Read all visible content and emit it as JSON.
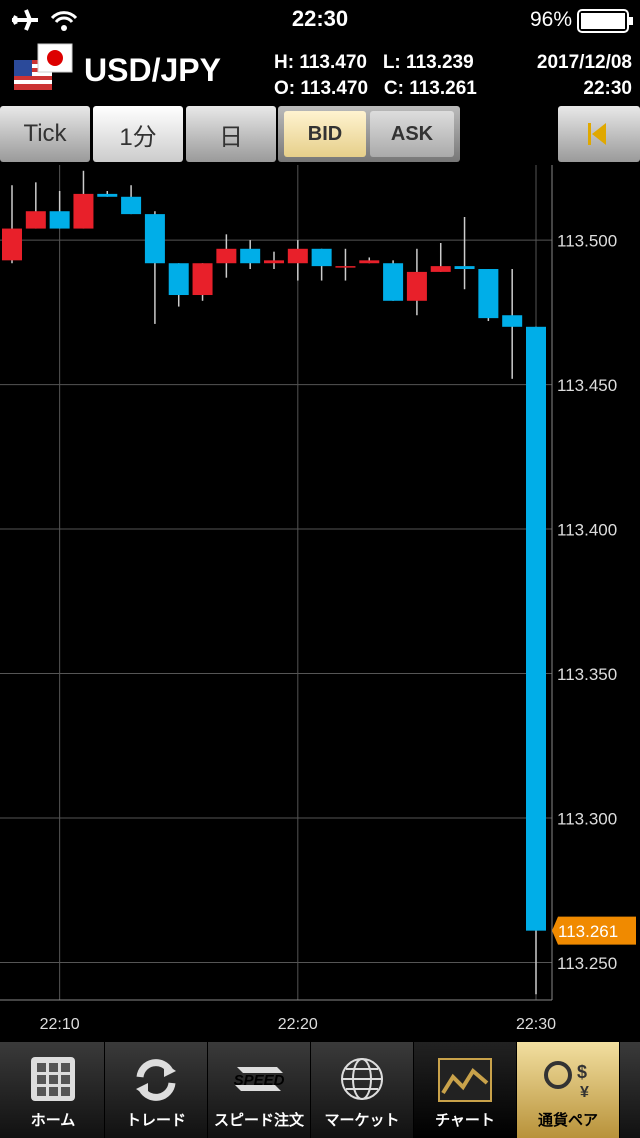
{
  "status_bar": {
    "time": "22:30",
    "battery": "96%"
  },
  "quote": {
    "pair": "USD/JPY",
    "high_label": "H:",
    "high": "113.470",
    "low_label": "L:",
    "low": "113.239",
    "open_label": "O:",
    "open": "113.470",
    "close_label": "C:",
    "close": "113.261",
    "date": "2017/12/08",
    "time": "22:30"
  },
  "toolbar": {
    "buttons": [
      "Tick",
      "1分",
      "日"
    ],
    "sides": [
      "BID",
      "ASK"
    ]
  },
  "chart_data": {
    "type": "candlestick",
    "categories": [
      null,
      null,
      "22:10",
      null,
      null,
      null,
      null,
      null,
      null,
      null,
      null,
      null,
      "22:20",
      null,
      null,
      null,
      null,
      null,
      null,
      null,
      null,
      null,
      "22:30"
    ],
    "open": [
      113.493,
      113.504,
      113.51,
      113.504,
      113.516,
      113.515,
      113.509,
      113.492,
      113.481,
      113.492,
      113.497,
      113.492,
      113.492,
      113.497,
      113.491,
      113.492,
      113.492,
      113.479,
      113.489,
      113.491,
      113.49,
      113.474,
      113.47
    ],
    "high": [
      113.519,
      113.52,
      113.517,
      113.524,
      113.517,
      113.519,
      113.51,
      113.492,
      113.492,
      113.502,
      113.5,
      113.496,
      113.5,
      113.497,
      113.497,
      113.494,
      113.493,
      113.497,
      113.499,
      113.508,
      113.49,
      113.49,
      113.47
    ],
    "low": [
      113.492,
      113.504,
      113.504,
      113.504,
      113.515,
      113.509,
      113.471,
      113.477,
      113.479,
      113.487,
      113.49,
      113.49,
      113.486,
      113.486,
      113.486,
      113.492,
      113.479,
      113.474,
      113.489,
      113.483,
      113.472,
      113.452,
      113.239
    ],
    "close": [
      113.504,
      113.51,
      113.504,
      113.516,
      113.515,
      113.509,
      113.492,
      113.481,
      113.492,
      113.497,
      113.492,
      113.493,
      113.497,
      113.491,
      113.491,
      113.493,
      113.479,
      113.489,
      113.491,
      113.49,
      113.473,
      113.47,
      113.261
    ],
    "up_color": "#e8202a",
    "down_color": "#00aee8",
    "ylim": [
      113.237,
      113.526
    ],
    "yticks": [
      {
        "value": 113.25,
        "label": "113.250"
      },
      {
        "value": 113.3,
        "label": "113.300"
      },
      {
        "value": 113.35,
        "label": "113.350"
      },
      {
        "value": 113.4,
        "label": "113.400"
      },
      {
        "value": 113.45,
        "label": "113.450"
      },
      {
        "value": 113.5,
        "label": "113.500"
      }
    ],
    "grid": true,
    "last_color": "#f08a00"
  },
  "tabs": [
    "ホーム",
    "トレード",
    "スピード注文",
    "マーケット",
    "チャート",
    "通貨ペア"
  ],
  "speed_icon": "SPEED"
}
